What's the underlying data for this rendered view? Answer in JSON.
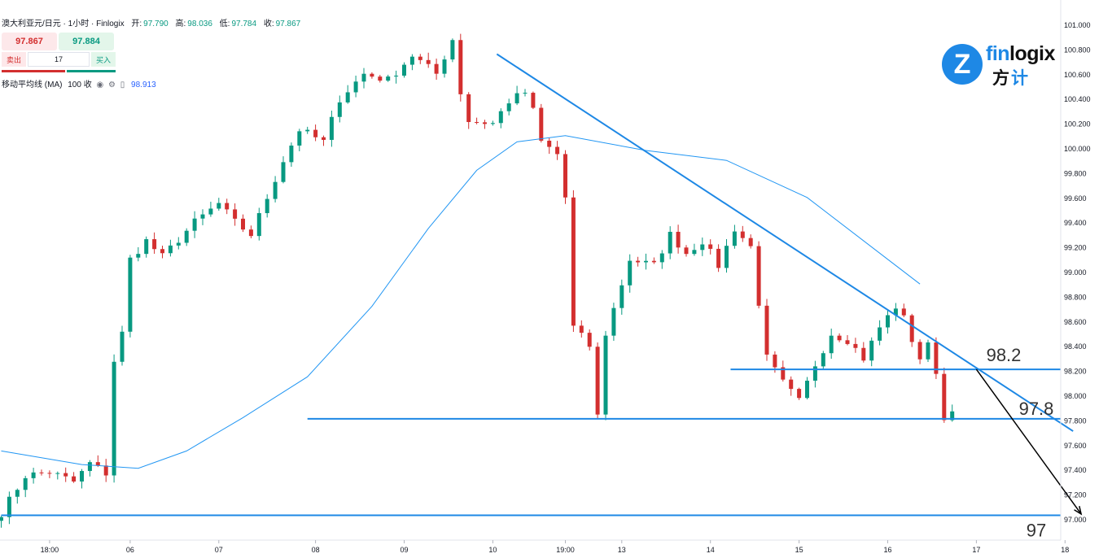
{
  "header": {
    "symbol": "澳大利亚元/日元 · 1小时 · Finlogix",
    "open_label": "开:",
    "open": "97.790",
    "high_label": "高:",
    "high": "98.036",
    "low_label": "低:",
    "low": "97.784",
    "close_label": "收:",
    "close": "97.867"
  },
  "trade": {
    "sell_price": "97.867",
    "buy_price": "97.884",
    "sell_label": "卖出",
    "buy_label": "买入",
    "quantity": "17",
    "sell_color": "#d32f2f",
    "buy_color": "#089981"
  },
  "indicator": {
    "name": "移动平均线 (MA)",
    "params": "100 收",
    "value": "98.913",
    "icons": [
      "eye-icon",
      "settings-icon",
      "trash-icon"
    ]
  },
  "logo": {
    "brand_prefix": "fin",
    "brand_rest": "logix",
    "cn_1": "方",
    "cn_2": "计",
    "mark": "Z"
  },
  "chart_data": {
    "type": "candlestick",
    "up_color": "#089981",
    "down_color": "#d32f2f",
    "ma_color": "#2196f3",
    "line_color": "#1e88e5",
    "y_ticks": [
      "101.000",
      "100.800",
      "100.600",
      "100.400",
      "100.200",
      "100.000",
      "99.800",
      "99.600",
      "99.400",
      "99.200",
      "99.000",
      "98.800",
      "98.600",
      "98.400",
      "98.200",
      "98.000",
      "97.800",
      "97.600",
      "97.400",
      "97.200",
      "97.000"
    ],
    "ylim": [
      96.97,
      101.05
    ],
    "x_ticks": [
      {
        "label": "18:00",
        "t": 6
      },
      {
        "label": "06",
        "t": 16
      },
      {
        "label": "07",
        "t": 27
      },
      {
        "label": "08",
        "t": 39
      },
      {
        "label": "09",
        "t": 50
      },
      {
        "label": "10",
        "t": 61
      },
      {
        "label": "19:00",
        "t": 70
      },
      {
        "label": "13",
        "t": 77
      },
      {
        "label": "14",
        "t": 88
      },
      {
        "label": "15",
        "t": 99
      },
      {
        "label": "16",
        "t": 110
      },
      {
        "label": "17",
        "t": 121
      },
      {
        "label": "18",
        "t": 132
      }
    ],
    "levels": [
      {
        "label": "98.2",
        "price": 98.21,
        "t_start": 90.5,
        "t_end": 132
      },
      {
        "label": "97.8",
        "price": 97.81,
        "t_start": 38,
        "t_end": 132
      },
      {
        "label": "97",
        "price": 97.03,
        "t_start": 0,
        "t_end": 139
      }
    ],
    "trendline": {
      "t1": 61.5,
      "p1": 100.76,
      "t2": 133,
      "p2": 97.71
    },
    "projection": {
      "t1": 121,
      "p1": 98.21,
      "t2": 134,
      "p2": 97.04
    },
    "key_points": [
      {
        "t": 0,
        "p": 97.05
      },
      {
        "t": 3,
        "p": 97.35
      },
      {
        "t": 6,
        "p": 97.38
      },
      {
        "t": 9,
        "p": 97.3
      },
      {
        "t": 11,
        "p": 97.45
      },
      {
        "t": 13,
        "p": 97.37
      },
      {
        "t": 14,
        "p": 98.28
      },
      {
        "t": 15,
        "p": 98.5
      },
      {
        "t": 16,
        "p": 99.1
      },
      {
        "t": 18,
        "p": 99.25
      },
      {
        "t": 20,
        "p": 99.12
      },
      {
        "t": 24,
        "p": 99.4
      },
      {
        "t": 27,
        "p": 99.55
      },
      {
        "t": 29,
        "p": 99.4
      },
      {
        "t": 31,
        "p": 99.3
      },
      {
        "t": 35,
        "p": 99.9
      },
      {
        "t": 37,
        "p": 100.15
      },
      {
        "t": 40,
        "p": 100.05
      },
      {
        "t": 42,
        "p": 100.4
      },
      {
        "t": 45,
        "p": 100.6
      },
      {
        "t": 48,
        "p": 100.55
      },
      {
        "t": 51,
        "p": 100.75
      },
      {
        "t": 54,
        "p": 100.6
      },
      {
        "t": 56,
        "p": 100.88
      },
      {
        "t": 57,
        "p": 100.45
      },
      {
        "t": 58,
        "p": 100.22
      },
      {
        "t": 61,
        "p": 100.2
      },
      {
        "t": 63,
        "p": 100.38
      },
      {
        "t": 65,
        "p": 100.45
      },
      {
        "t": 66,
        "p": 100.3
      },
      {
        "t": 67,
        "p": 100.05
      },
      {
        "t": 69,
        "p": 99.95
      },
      {
        "t": 70,
        "p": 99.6
      },
      {
        "t": 71,
        "p": 98.55
      },
      {
        "t": 73,
        "p": 98.4
      },
      {
        "t": 74,
        "p": 97.83
      },
      {
        "t": 75,
        "p": 98.5
      },
      {
        "t": 78,
        "p": 99.1
      },
      {
        "t": 81,
        "p": 99.05
      },
      {
        "t": 83,
        "p": 99.3
      },
      {
        "t": 85,
        "p": 99.15
      },
      {
        "t": 87,
        "p": 99.25
      },
      {
        "t": 89,
        "p": 99.05
      },
      {
        "t": 91,
        "p": 99.35
      },
      {
        "t": 93,
        "p": 99.2
      },
      {
        "t": 94,
        "p": 98.75
      },
      {
        "t": 95,
        "p": 98.3
      },
      {
        "t": 97,
        "p": 98.1
      },
      {
        "t": 99,
        "p": 97.95
      },
      {
        "t": 101,
        "p": 98.25
      },
      {
        "t": 103,
        "p": 98.5
      },
      {
        "t": 105,
        "p": 98.45
      },
      {
        "t": 107,
        "p": 98.3
      },
      {
        "t": 109,
        "p": 98.55
      },
      {
        "t": 111,
        "p": 98.72
      },
      {
        "t": 112,
        "p": 98.62
      },
      {
        "t": 113,
        "p": 98.45
      },
      {
        "t": 114,
        "p": 98.3
      },
      {
        "t": 115,
        "p": 98.4
      },
      {
        "t": 116,
        "p": 98.2
      },
      {
        "t": 117,
        "p": 97.8
      },
      {
        "t": 118,
        "p": 97.87
      }
    ],
    "ma_points": [
      {
        "t": 0,
        "p": 97.55
      },
      {
        "t": 10,
        "p": 97.44
      },
      {
        "t": 17,
        "p": 97.41
      },
      {
        "t": 23,
        "p": 97.55
      },
      {
        "t": 30,
        "p": 97.82
      },
      {
        "t": 38,
        "p": 98.15
      },
      {
        "t": 46,
        "p": 98.72
      },
      {
        "t": 53,
        "p": 99.35
      },
      {
        "t": 59,
        "p": 99.82
      },
      {
        "t": 64,
        "p": 100.05
      },
      {
        "t": 70,
        "p": 100.1
      },
      {
        "t": 80,
        "p": 99.98
      },
      {
        "t": 90,
        "p": 99.9
      },
      {
        "t": 100,
        "p": 99.6
      },
      {
        "t": 110,
        "p": 99.1
      },
      {
        "t": 114,
        "p": 98.9
      }
    ]
  }
}
